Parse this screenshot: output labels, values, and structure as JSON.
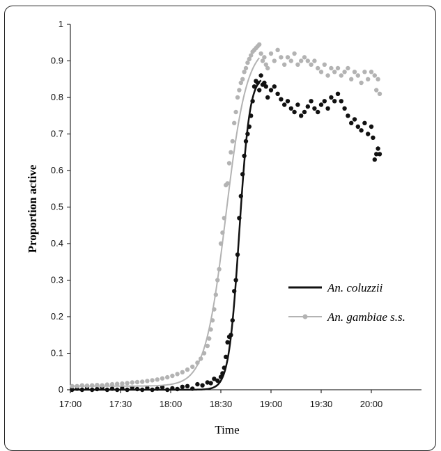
{
  "chart_data": {
    "type": "scatter",
    "title": "",
    "xlabel": "Time",
    "ylabel": "Proportion active",
    "ylim": [
      0,
      1
    ],
    "xlim": [
      "17:00",
      "20:30"
    ],
    "yticks": [
      "0",
      "0.1",
      "0.2",
      "0.3",
      "0.4",
      "0.5",
      "0.6",
      "0.7",
      "0.8",
      "0.9",
      "1"
    ],
    "xticks": [
      "17:00",
      "17:30",
      "18:00",
      "18:30",
      "19:00",
      "19:30",
      "20:00"
    ],
    "grid": false,
    "legend_position": "bottom-right",
    "series": [
      {
        "name": "An. coluzzii",
        "color": "#111111",
        "marker": "circle",
        "fit_line": true,
        "points": [
          [
            "17:01",
            0.0
          ],
          [
            "17:04",
            0.003
          ],
          [
            "17:07",
            0.0
          ],
          [
            "17:10",
            0.005
          ],
          [
            "17:13",
            0.0
          ],
          [
            "17:16",
            0.002
          ],
          [
            "17:19",
            0.006
          ],
          [
            "17:22",
            0.0
          ],
          [
            "17:25",
            0.003
          ],
          [
            "17:28",
            0.0
          ],
          [
            "17:31",
            0.004
          ],
          [
            "17:34",
            0.0
          ],
          [
            "17:37",
            0.006
          ],
          [
            "17:40",
            0.002
          ],
          [
            "17:43",
            0.0
          ],
          [
            "17:46",
            0.005
          ],
          [
            "17:49",
            0.0
          ],
          [
            "17:52",
            0.003
          ],
          [
            "17:55",
            0.007
          ],
          [
            "17:58",
            0.0
          ],
          [
            "18:01",
            0.004
          ],
          [
            "18:04",
            0.002
          ],
          [
            "18:07",
            0.008
          ],
          [
            "18:10",
            0.01
          ],
          [
            "18:13",
            0.003
          ],
          [
            "18:16",
            0.015
          ],
          [
            "18:19",
            0.012
          ],
          [
            "18:22",
            0.02
          ],
          [
            "18:24",
            0.018
          ],
          [
            "18:26",
            0.03
          ],
          [
            "18:28",
            0.025
          ],
          [
            "18:30",
            0.035
          ],
          [
            "18:31",
            0.045
          ],
          [
            "18:32",
            0.06
          ],
          [
            "18:33",
            0.09
          ],
          [
            "18:34",
            0.13
          ],
          [
            "18:35",
            0.145
          ],
          [
            "18:36",
            0.15
          ],
          [
            "18:37",
            0.19
          ],
          [
            "18:38",
            0.27
          ],
          [
            "18:39",
            0.3
          ],
          [
            "18:40",
            0.37
          ],
          [
            "18:41",
            0.47
          ],
          [
            "18:42",
            0.53
          ],
          [
            "18:43",
            0.59
          ],
          [
            "18:44",
            0.64
          ],
          [
            "18:45",
            0.68
          ],
          [
            "18:46",
            0.7
          ],
          [
            "18:47",
            0.72
          ],
          [
            "18:48",
            0.75
          ],
          [
            "18:49",
            0.79
          ],
          [
            "18:50",
            0.83
          ],
          [
            "18:51",
            0.845
          ],
          [
            "18:52",
            0.84
          ],
          [
            "18:53",
            0.82
          ],
          [
            "18:54",
            0.86
          ],
          [
            "18:55",
            0.835
          ],
          [
            "18:56",
            0.84
          ],
          [
            "18:57",
            0.83
          ],
          [
            "18:58",
            0.8
          ],
          [
            "19:00",
            0.82
          ],
          [
            "19:02",
            0.83
          ],
          [
            "19:04",
            0.81
          ],
          [
            "19:06",
            0.795
          ],
          [
            "19:08",
            0.78
          ],
          [
            "19:10",
            0.79
          ],
          [
            "19:12",
            0.77
          ],
          [
            "19:14",
            0.76
          ],
          [
            "19:16",
            0.78
          ],
          [
            "19:18",
            0.75
          ],
          [
            "19:20",
            0.76
          ],
          [
            "19:22",
            0.775
          ],
          [
            "19:24",
            0.79
          ],
          [
            "19:26",
            0.77
          ],
          [
            "19:28",
            0.76
          ],
          [
            "19:30",
            0.78
          ],
          [
            "19:32",
            0.79
          ],
          [
            "19:34",
            0.77
          ],
          [
            "19:36",
            0.8
          ],
          [
            "19:38",
            0.79
          ],
          [
            "19:40",
            0.81
          ],
          [
            "19:42",
            0.79
          ],
          [
            "19:44",
            0.77
          ],
          [
            "19:46",
            0.75
          ],
          [
            "19:48",
            0.73
          ],
          [
            "19:50",
            0.74
          ],
          [
            "19:52",
            0.72
          ],
          [
            "19:54",
            0.71
          ],
          [
            "19:56",
            0.73
          ],
          [
            "19:58",
            0.7
          ],
          [
            "20:00",
            0.72
          ],
          [
            "20:01",
            0.69
          ],
          [
            "20:02",
            0.63
          ],
          [
            "20:03",
            0.645
          ],
          [
            "20:04",
            0.66
          ],
          [
            "20:05",
            0.645
          ]
        ]
      },
      {
        "name": "An. gambiae s.s.",
        "color": "#b3b3b3",
        "marker": "circle",
        "fit_line": true,
        "points": [
          [
            "17:01",
            0.01
          ],
          [
            "17:04",
            0.01
          ],
          [
            "17:07",
            0.012
          ],
          [
            "17:10",
            0.011
          ],
          [
            "17:13",
            0.012
          ],
          [
            "17:16",
            0.013
          ],
          [
            "17:19",
            0.012
          ],
          [
            "17:22",
            0.014
          ],
          [
            "17:25",
            0.015
          ],
          [
            "17:28",
            0.016
          ],
          [
            "17:31",
            0.017
          ],
          [
            "17:34",
            0.018
          ],
          [
            "17:37",
            0.02
          ],
          [
            "17:40",
            0.021
          ],
          [
            "17:43",
            0.022
          ],
          [
            "17:46",
            0.024
          ],
          [
            "17:49",
            0.026
          ],
          [
            "17:52",
            0.028
          ],
          [
            "17:55",
            0.031
          ],
          [
            "17:58",
            0.034
          ],
          [
            "18:01",
            0.038
          ],
          [
            "18:04",
            0.043
          ],
          [
            "18:07",
            0.048
          ],
          [
            "18:10",
            0.055
          ],
          [
            "18:13",
            0.063
          ],
          [
            "18:16",
            0.074
          ],
          [
            "18:18",
            0.085
          ],
          [
            "18:20",
            0.1
          ],
          [
            "18:22",
            0.12
          ],
          [
            "18:23",
            0.14
          ],
          [
            "18:24",
            0.165
          ],
          [
            "18:25",
            0.19
          ],
          [
            "18:26",
            0.22
          ],
          [
            "18:27",
            0.26
          ],
          [
            "18:28",
            0.3
          ],
          [
            "18:29",
            0.33
          ],
          [
            "18:30",
            0.4
          ],
          [
            "18:31",
            0.43
          ],
          [
            "18:32",
            0.47
          ],
          [
            "18:33",
            0.56
          ],
          [
            "18:34",
            0.565
          ],
          [
            "18:35",
            0.62
          ],
          [
            "18:36",
            0.65
          ],
          [
            "18:37",
            0.68
          ],
          [
            "18:38",
            0.73
          ],
          [
            "18:39",
            0.76
          ],
          [
            "18:40",
            0.8
          ],
          [
            "18:41",
            0.82
          ],
          [
            "18:42",
            0.84
          ],
          [
            "18:43",
            0.85
          ],
          [
            "18:44",
            0.87
          ],
          [
            "18:45",
            0.88
          ],
          [
            "18:46",
            0.895
          ],
          [
            "18:47",
            0.905
          ],
          [
            "18:48",
            0.915
          ],
          [
            "18:49",
            0.925
          ],
          [
            "18:50",
            0.93
          ],
          [
            "18:51",
            0.935
          ],
          [
            "18:52",
            0.94
          ],
          [
            "18:53",
            0.945
          ],
          [
            "18:54",
            0.92
          ],
          [
            "18:55",
            0.9
          ],
          [
            "18:56",
            0.91
          ],
          [
            "18:57",
            0.89
          ],
          [
            "18:58",
            0.88
          ],
          [
            "19:00",
            0.92
          ],
          [
            "19:02",
            0.9
          ],
          [
            "19:04",
            0.93
          ],
          [
            "19:06",
            0.91
          ],
          [
            "19:08",
            0.89
          ],
          [
            "19:10",
            0.91
          ],
          [
            "19:12",
            0.9
          ],
          [
            "19:14",
            0.92
          ],
          [
            "19:16",
            0.89
          ],
          [
            "19:18",
            0.9
          ],
          [
            "19:20",
            0.91
          ],
          [
            "19:22",
            0.9
          ],
          [
            "19:24",
            0.89
          ],
          [
            "19:26",
            0.9
          ],
          [
            "19:28",
            0.88
          ],
          [
            "19:30",
            0.87
          ],
          [
            "19:32",
            0.89
          ],
          [
            "19:34",
            0.86
          ],
          [
            "19:36",
            0.88
          ],
          [
            "19:38",
            0.87
          ],
          [
            "19:40",
            0.88
          ],
          [
            "19:42",
            0.86
          ],
          [
            "19:44",
            0.87
          ],
          [
            "19:46",
            0.88
          ],
          [
            "19:48",
            0.85
          ],
          [
            "19:50",
            0.87
          ],
          [
            "19:52",
            0.86
          ],
          [
            "19:54",
            0.84
          ],
          [
            "19:56",
            0.87
          ],
          [
            "19:58",
            0.85
          ],
          [
            "20:00",
            0.87
          ],
          [
            "20:02",
            0.86
          ],
          [
            "20:03",
            0.82
          ],
          [
            "20:04",
            0.85
          ],
          [
            "20:05",
            0.81
          ]
        ]
      }
    ]
  }
}
